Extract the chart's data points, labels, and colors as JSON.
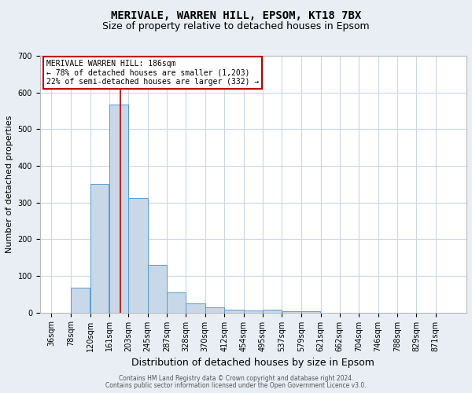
{
  "title": "MERIVALE, WARREN HILL, EPSOM, KT18 7BX",
  "subtitle": "Size of property relative to detached houses in Epsom",
  "xlabel": "Distribution of detached houses by size in Epsom",
  "ylabel": "Number of detached properties",
  "footnote1": "Contains HM Land Registry data © Crown copyright and database right 2024.",
  "footnote2": "Contains public sector information licensed under the Open Government Licence v3.0.",
  "bin_labels": [
    "36sqm",
    "78sqm",
    "120sqm",
    "161sqm",
    "203sqm",
    "245sqm",
    "287sqm",
    "328sqm",
    "370sqm",
    "412sqm",
    "454sqm",
    "495sqm",
    "537sqm",
    "579sqm",
    "621sqm",
    "662sqm",
    "704sqm",
    "746sqm",
    "788sqm",
    "829sqm",
    "871sqm"
  ],
  "bin_edges": [
    36,
    78,
    120,
    161,
    203,
    245,
    287,
    328,
    370,
    412,
    454,
    495,
    537,
    579,
    621,
    662,
    704,
    746,
    788,
    829,
    871,
    913
  ],
  "bar_heights": [
    0,
    67,
    350,
    567,
    312,
    130,
    55,
    25,
    15,
    7,
    5,
    8,
    4,
    3,
    0,
    0,
    0,
    0,
    0,
    0,
    0
  ],
  "bar_color": "#c8d8e8",
  "bar_edge_color": "#5b9bd5",
  "property_size": 186,
  "vline_color": "#c00000",
  "annotation_line1": "MERIVALE WARREN HILL: 186sqm",
  "annotation_line2": "← 78% of detached houses are smaller (1,203)",
  "annotation_line3": "22% of semi-detached houses are larger (332) →",
  "annotation_box_color": "#ffffff",
  "annotation_box_edge_color": "#c00000",
  "ylim": [
    0,
    700
  ],
  "yticks": [
    0,
    100,
    200,
    300,
    400,
    500,
    600,
    700
  ],
  "grid_color": "#c8d8e8",
  "background_color": "#e8eef4",
  "plot_bg_color": "#ffffff",
  "title_fontsize": 10,
  "subtitle_fontsize": 9,
  "xlabel_fontsize": 9,
  "ylabel_fontsize": 8,
  "tick_fontsize": 7,
  "annotation_fontsize": 7,
  "footnote_fontsize": 5.5
}
